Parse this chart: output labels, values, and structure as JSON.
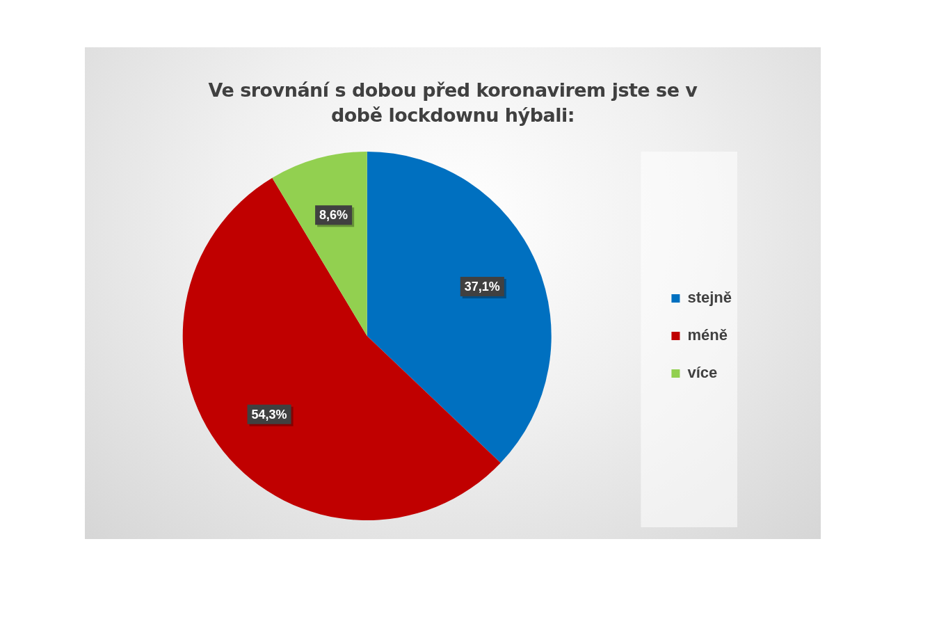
{
  "chart_data": {
    "type": "pie",
    "title": "Ve srovnání s dobou před koronavirem jste se v době lockdownu hýbali:",
    "categories": [
      "stejně",
      "méně",
      "více"
    ],
    "values": [
      37.1,
      54.3,
      8.6
    ],
    "colors": [
      "#0070c0",
      "#c00000",
      "#92d050"
    ],
    "value_labels": [
      "37,1%",
      "54,3%",
      "8,6%"
    ],
    "legend": "right"
  }
}
